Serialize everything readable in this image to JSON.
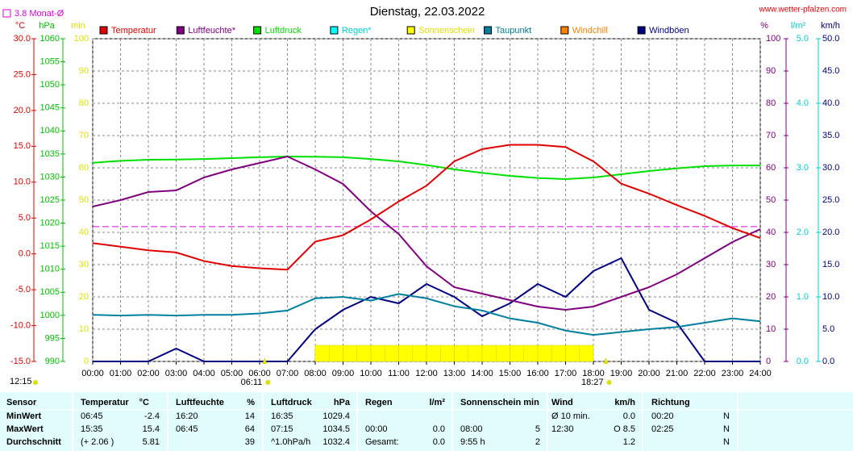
{
  "chart_data": {
    "type": "line",
    "title": "Dienstag, 22.03.2022",
    "site": "www.wetter-pfalzen.com",
    "reference": {
      "label": "3.8 Monat-Ø",
      "value": 3.8,
      "color": "#e000e0",
      "axis": "temp"
    },
    "axes": {
      "temp": {
        "label": "°C",
        "color": "#e00000",
        "lim": [
          -15,
          30
        ],
        "ticks": [
          {
            "value": 30,
            "label": "30.0"
          },
          {
            "value": 25,
            "label": "25.0"
          },
          {
            "value": 20,
            "label": "20.0"
          },
          {
            "value": 15,
            "label": "15.0"
          },
          {
            "value": 10,
            "label": "10.0"
          },
          {
            "value": 5,
            "label": "5.0"
          },
          {
            "value": 0,
            "label": "0.0"
          },
          {
            "value": -5,
            "label": "-5.0"
          },
          {
            "value": -10,
            "label": "-10.0"
          },
          {
            "value": -15,
            "label": "-15.0"
          }
        ]
      },
      "press": {
        "label": "hPa",
        "color": "#00c000",
        "lim": [
          990,
          1060
        ],
        "ticks": [
          1060,
          1055,
          1050,
          1045,
          1040,
          1035,
          1030,
          1025,
          1020,
          1015,
          1010,
          1005,
          1000,
          995,
          990
        ]
      },
      "sun": {
        "label": "min",
        "color": "#e0e000",
        "lim": [
          0,
          100
        ],
        "ticks": [
          100,
          90,
          80,
          70,
          60,
          50,
          40,
          30,
          20,
          10,
          0
        ]
      },
      "hum": {
        "label": "%",
        "color": "#800080",
        "lim": [
          0,
          100
        ],
        "ticks": [
          100,
          90,
          80,
          70,
          60,
          50,
          40,
          30,
          20,
          10,
          0
        ]
      },
      "rain": {
        "label": "l/m²",
        "color": "#00d0d0",
        "lim": [
          0,
          5
        ],
        "ticks": [
          {
            "value": 5,
            "label": "5.0"
          },
          {
            "value": 4,
            "label": "4.0"
          },
          {
            "value": 3,
            "label": "3.0"
          },
          {
            "value": 2,
            "label": "2.0"
          },
          {
            "value": 1,
            "label": "1.0"
          },
          {
            "value": 0,
            "label": "0.0"
          }
        ]
      },
      "wind": {
        "label": "km/h",
        "color": "#000080",
        "lim": [
          0,
          50
        ],
        "ticks": [
          {
            "value": 50,
            "label": "50.0"
          },
          {
            "value": 45,
            "label": "45.0"
          },
          {
            "value": 40,
            "label": "40.0"
          },
          {
            "value": 35,
            "label": "35.0"
          },
          {
            "value": 30,
            "label": "30.0"
          },
          {
            "value": 25,
            "label": "25.0"
          },
          {
            "value": 20,
            "label": "20.0"
          },
          {
            "value": 15,
            "label": "15.0"
          },
          {
            "value": 10,
            "label": "10.0"
          },
          {
            "value": 5,
            "label": "5.0"
          },
          {
            "value": 0,
            "label": "0.0"
          }
        ]
      }
    },
    "xlim": [
      0,
      24
    ],
    "xticks": [
      {
        "value": 0,
        "label": "00:00"
      },
      {
        "value": 1,
        "label": "01:00"
      },
      {
        "value": 2,
        "label": "02:00"
      },
      {
        "value": 3,
        "label": "03:00"
      },
      {
        "value": 4,
        "label": "04:00"
      },
      {
        "value": 5,
        "label": "05:00"
      },
      {
        "value": 6,
        "label": "06:00"
      },
      {
        "value": 7,
        "label": "07:00"
      },
      {
        "value": 8,
        "label": "08:00"
      },
      {
        "value": 9,
        "label": "09:00"
      },
      {
        "value": 10,
        "label": "10:00"
      },
      {
        "value": 11,
        "label": "11:00"
      },
      {
        "value": 12,
        "label": "12:00"
      },
      {
        "value": 13,
        "label": "13:00"
      },
      {
        "value": 14,
        "label": "14:00"
      },
      {
        "value": 15,
        "label": "15:00"
      },
      {
        "value": 16,
        "label": "16:00"
      },
      {
        "value": 17,
        "label": "17:00"
      },
      {
        "value": 18,
        "label": "18:00"
      },
      {
        "value": 19,
        "label": "19:00"
      },
      {
        "value": 20,
        "label": "20:00"
      },
      {
        "value": 21,
        "label": "21:00"
      },
      {
        "value": 22,
        "label": "22:00"
      },
      {
        "value": 23,
        "label": "23:00"
      },
      {
        "value": 24,
        "label": "24:00"
      }
    ],
    "grid": true,
    "x": [
      0,
      1,
      2,
      3,
      4,
      5,
      6,
      7,
      8,
      9,
      10,
      11,
      12,
      13,
      14,
      15,
      16,
      17,
      18,
      19,
      20,
      21,
      22,
      23,
      24
    ],
    "series": [
      {
        "name": "Temperatur",
        "color": "#e00000",
        "axis": "temp",
        "values": [
          1.5,
          1.0,
          0.5,
          0.2,
          -1.0,
          -1.7,
          -2.0,
          -2.2,
          1.7,
          2.6,
          4.8,
          7.3,
          9.5,
          12.9,
          14.6,
          15.2,
          15.2,
          14.9,
          12.9,
          9.8,
          8.4,
          6.8,
          5.3,
          3.6,
          2.2
        ]
      },
      {
        "name": "Luftfeuchte*",
        "color": "#800080",
        "axis": "hum",
        "values": [
          48,
          50,
          52.5,
          53,
          57,
          59.5,
          61.5,
          63.5,
          59.5,
          55,
          46.5,
          39.5,
          29.5,
          23,
          21,
          19,
          17,
          16,
          17,
          20,
          23,
          27,
          32,
          37,
          41
        ]
      },
      {
        "name": "Luftdruck",
        "color": "#00e000",
        "axis": "press",
        "values": [
          1033.1,
          1033.5,
          1033.75,
          1033.8,
          1033.9,
          1034.1,
          1034.3,
          1034.45,
          1034.4,
          1034.3,
          1033.9,
          1033.4,
          1032.6,
          1031.65,
          1030.9,
          1030.25,
          1029.8,
          1029.55,
          1029.9,
          1030.6,
          1031.3,
          1031.9,
          1032.35,
          1032.5,
          1032.5
        ]
      },
      {
        "name": "Regen*",
        "color": "#00ffff",
        "axis": "rain"
      },
      {
        "name": "Sonnenschein",
        "color": "#ffff00",
        "axis": "sun",
        "bars": true,
        "x": [
          8,
          8.5,
          9,
          9.5,
          10,
          10.5,
          11,
          11.5,
          12,
          12.5,
          13,
          13.5,
          14,
          14.5,
          15,
          15.5,
          16,
          16.5,
          17,
          17.5
        ],
        "values": [
          5,
          5,
          5,
          5,
          5,
          5,
          5,
          5,
          5,
          5,
          5,
          5,
          5,
          5,
          5,
          5,
          5,
          5,
          5,
          5
        ]
      },
      {
        "name": "Taupunkt",
        "color": "#0080a0",
        "axis": "temp",
        "values": [
          -8.5,
          -8.6,
          -8.5,
          -8.6,
          -8.5,
          -8.5,
          -8.3,
          -7.9,
          -6.2,
          -6.0,
          -6.5,
          -5.6,
          -6.2,
          -7.3,
          -7.9,
          -9.0,
          -9.6,
          -10.7,
          -11.3,
          -10.9,
          -10.5,
          -10.2,
          -9.6,
          -9.0,
          -9.4
        ]
      },
      {
        "name": "Windchill",
        "color": "#ff8000",
        "axis": "temp"
      },
      {
        "name": "Windböen",
        "color": "#000080",
        "axis": "wind",
        "values": [
          0,
          0,
          0,
          2,
          0,
          0,
          0,
          0,
          5,
          8,
          10,
          9,
          12,
          10,
          7,
          9,
          12,
          10,
          14,
          16,
          8,
          6,
          0,
          0,
          0
        ]
      }
    ],
    "annotations": [
      {
        "label": "12:15"
      },
      {
        "label": "06:11",
        "x": 6.1833
      },
      {
        "label": "18:27",
        "x": 18.45
      }
    ]
  },
  "table": {
    "header": [
      "Sensor",
      "Temperatur",
      "°C",
      "Luftfeuchte",
      "%",
      "Luftdruck",
      "hPa",
      "Regen",
      "l/m²",
      "Sonnenschein min",
      null,
      "Wind",
      "km/h",
      "Richtung",
      null
    ],
    "rows": [
      [
        "MinWert",
        "06:45",
        "-2.4",
        "16:20",
        "14",
        "16:35",
        "1029.4",
        null,
        null,
        null,
        null,
        "Ø 10 min.",
        "0.0",
        "00:20",
        "N"
      ],
      [
        "MaxWert",
        "15:35",
        "15.4",
        "06:45",
        "64",
        "07:15",
        "1034.5",
        "00:00",
        "0.0",
        "08:00",
        "5",
        "12:30",
        "O 8.5",
        "02:25",
        "N"
      ],
      [
        "Durchschnitt",
        "(+ 2.06 )",
        "5.81",
        null,
        "39",
        "^1.0hPa/h",
        "1032.4",
        "Gesamt:",
        "0.0",
        "9:55 h",
        "2",
        null,
        "1.2",
        null,
        "N"
      ]
    ]
  }
}
